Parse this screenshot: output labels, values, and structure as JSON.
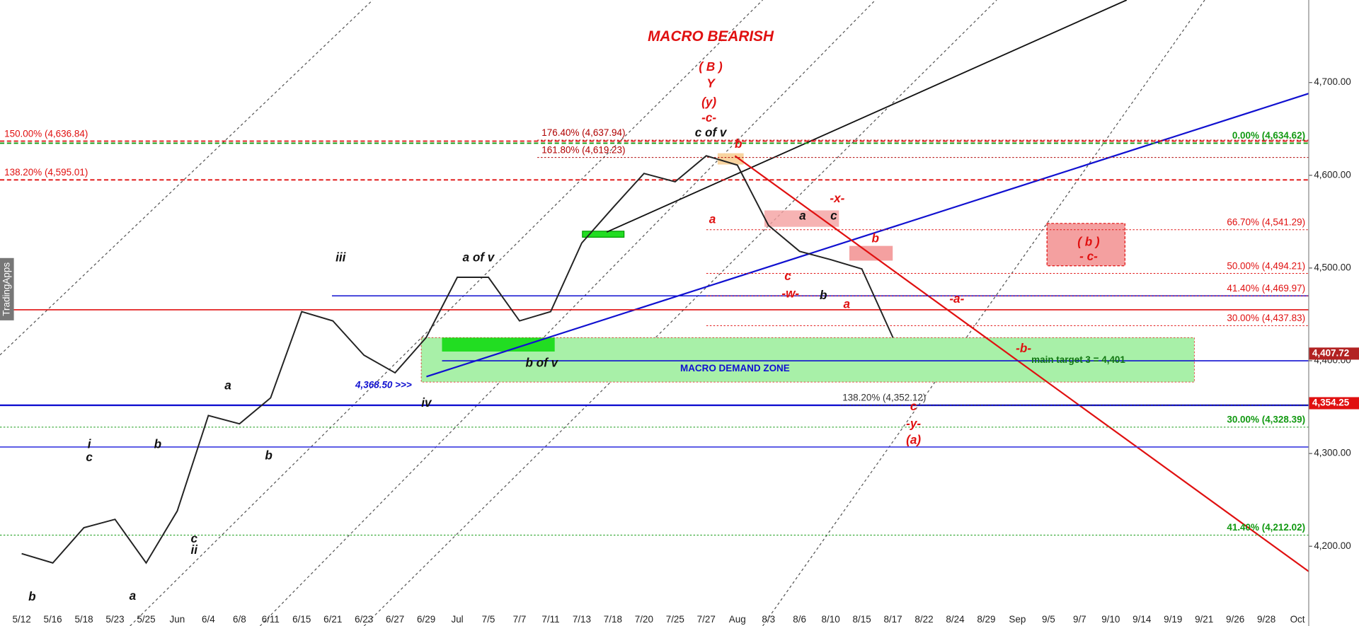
{
  "chart_data": {
    "type": "line",
    "title": "MACRO BEARISH",
    "watermark": "TradingApps",
    "categories": [
      "5/12",
      "5/16",
      "5/18",
      "5/23",
      "5/25",
      "Jun",
      "6/4",
      "6/8",
      "6/11",
      "6/15",
      "6/21",
      "6/23",
      "6/27",
      "6/29",
      "Jul",
      "7/5",
      "7/7",
      "7/11",
      "7/13",
      "7/18",
      "7/20",
      "7/25",
      "7/27",
      "Aug",
      "8/3",
      "8/6",
      "8/10",
      "8/15",
      "8/17",
      "8/22",
      "8/24",
      "8/29",
      "Sep",
      "9/5",
      "9/7",
      "9/10",
      "9/14",
      "9/19",
      "9/21",
      "9/26",
      "9/28",
      "Oct"
    ],
    "values": [
      4192,
      4182,
      4220,
      4229,
      4182,
      4238,
      4341,
      4332,
      4360,
      4453,
      4443,
      4406,
      4387,
      4425,
      4490,
      4490,
      4443,
      4453,
      4527,
      4565,
      4602,
      4593,
      4621,
      4611,
      4546,
      4518,
      4509,
      4499,
      4425,
      null,
      null,
      null,
      null,
      null,
      null,
      null,
      null,
      null,
      null,
      null,
      null,
      null
    ],
    "color": "#222222",
    "ylim": [
      4114,
      4789
    ],
    "yticks": [
      {
        "value": 4200,
        "label": "4,200.00"
      },
      {
        "value": 4300,
        "label": "4,300.00"
      },
      {
        "value": 4400,
        "label": "4,400.00"
      },
      {
        "value": 4500,
        "label": "4,500.00"
      },
      {
        "value": 4600,
        "label": "4,600.00"
      },
      {
        "value": 4700,
        "label": "4,700.00"
      }
    ],
    "price_labels": [
      {
        "value": 4407.72,
        "label": "4,407.72",
        "color": "#b22222"
      },
      {
        "value": 4354.25,
        "label": "4,354.25",
        "color": "#e01010"
      }
    ],
    "levels": [
      {
        "value": 4636.84,
        "label": "150.00% (4,636.84)",
        "color": "#e01010"
      },
      {
        "value": 4595.01,
        "label": "138.20% (4,595.01)",
        "color": "#e01010"
      },
      {
        "value": 4637.94,
        "label": "176.40% (4,637.94)",
        "color": "#b00000"
      },
      {
        "value": 4619.23,
        "label": "161.80% (4,619.23)",
        "color": "#b00000"
      },
      {
        "value": 4634.62,
        "label": "0.00% (4,634.62)",
        "color": "#119911"
      },
      {
        "value": 4541.29,
        "label": "66.70% (4,541.29)",
        "color": "#e01010"
      },
      {
        "value": 4494.21,
        "label": "50.00% (4,494.21)",
        "color": "#e01010"
      },
      {
        "value": 4469.97,
        "label": "41.40% (4,469.97)",
        "color": "#e01010"
      },
      {
        "value": 4437.83,
        "label": "30.00% (4,437.83)",
        "color": "#e01010"
      },
      {
        "value": 4352.12,
        "label": "138.20% (4,352.12)",
        "color": "#333333"
      },
      {
        "value": 4328.39,
        "label": "30.00% (4,328.39)",
        "color": "#119911"
      },
      {
        "value": 4212.02,
        "label": "41.40% (4,212.02)",
        "color": "#119911"
      }
    ],
    "lines": [
      {
        "value": 4455,
        "color": "#e01010"
      },
      {
        "value": 4470,
        "color": "#1010d0"
      },
      {
        "value": 4400,
        "color": "#1010d0"
      },
      {
        "value": 4352,
        "color": "#1010d0"
      },
      {
        "value": 4307,
        "color": "#3a3ae0"
      }
    ],
    "zone": {
      "label": "MACRO DEMAND ZONE",
      "range": [
        4377,
        4425
      ]
    },
    "annotations": [
      "main target 3 = 4,401",
      "4,368.50 >>>"
    ],
    "wave_labels": [
      "( B )",
      "Y",
      "(y)",
      "-c-",
      "c of v",
      "b",
      "a",
      "-x-",
      "a",
      "c",
      "b",
      "c",
      "-w-",
      "b",
      "a",
      "-a-",
      "-b-",
      "c",
      "-y-",
      "(a)",
      "( b )",
      "- c-",
      "iii",
      "a of v",
      "b of v",
      "iv",
      "a",
      "b",
      "i",
      "c",
      "b",
      "c",
      "ii",
      "b",
      "a"
    ]
  }
}
